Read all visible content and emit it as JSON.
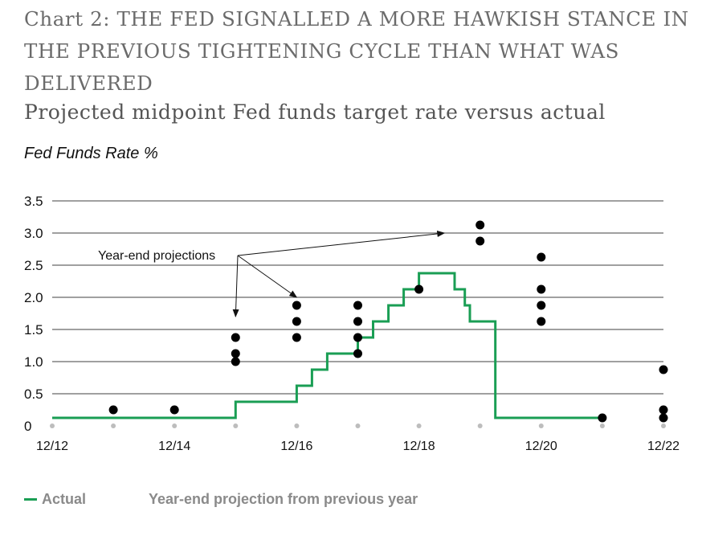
{
  "title": "Chart 2: THE FED SIGNALLED A MORE HAWKISH STANCE IN THE PREVIOUS TIGHTENING CYCLE THAN WHAT WAS DELIVERED",
  "subtitle": "Projected midpoint Fed funds target rate versus actual",
  "chart_data": {
    "type": "line",
    "title": "Chart 2: THE FED SIGNALLED A MORE HAWKISH STANCE IN THE PREVIOUS TIGHTENING CYCLE THAN WHAT WAS DELIVERED",
    "subtitle": "Projected midpoint Fed funds target rate versus actual",
    "ylabel": "Fed Funds Rate %",
    "xlabel": "",
    "ylim": [
      0,
      3.5
    ],
    "xlim": [
      "2012-12",
      "2022-12"
    ],
    "y_ticks": [
      "0",
      "0.5",
      "1.0",
      "1.5",
      "2.0",
      "2.5",
      "3.0",
      "3.5"
    ],
    "x_ticks": [
      "12/12",
      "12/14",
      "12/16",
      "12/18",
      "12/20",
      "12/22"
    ],
    "grid": "horizontal",
    "colors": {
      "actual": "#1a9e54",
      "projection": "#000000",
      "grid": "#000000",
      "year_marker": "#bdbdbd"
    },
    "series": [
      {
        "name": "Actual",
        "style": "step",
        "points": [
          [
            "2012-12",
            0.125
          ],
          [
            "2015-12",
            0.125
          ],
          [
            "2015-12",
            0.375
          ],
          [
            "2016-12",
            0.375
          ],
          [
            "2016-12",
            0.625
          ],
          [
            "2017-03",
            0.625
          ],
          [
            "2017-03",
            0.875
          ],
          [
            "2017-06",
            0.875
          ],
          [
            "2017-06",
            1.125
          ],
          [
            "2017-12",
            1.125
          ],
          [
            "2017-12",
            1.375
          ],
          [
            "2018-03",
            1.375
          ],
          [
            "2018-03",
            1.625
          ],
          [
            "2018-06",
            1.625
          ],
          [
            "2018-06",
            1.875
          ],
          [
            "2018-09",
            1.875
          ],
          [
            "2018-09",
            2.125
          ],
          [
            "2018-12",
            2.125
          ],
          [
            "2018-12",
            2.375
          ],
          [
            "2019-07",
            2.375
          ],
          [
            "2019-07",
            2.125
          ],
          [
            "2019-09",
            2.125
          ],
          [
            "2019-09",
            1.875
          ],
          [
            "2019-10",
            1.875
          ],
          [
            "2019-10",
            1.625
          ],
          [
            "2020-03",
            1.625
          ],
          [
            "2020-03",
            0.125
          ],
          [
            "2021-12",
            0.125
          ]
        ]
      },
      {
        "name": "Year-end projection from previous year",
        "style": "dots",
        "points": [
          [
            "2013-12",
            0.25
          ],
          [
            "2014-12",
            0.25
          ],
          [
            "2015-12",
            1.375
          ],
          [
            "2015-12",
            1.125
          ],
          [
            "2015-12",
            1.0
          ],
          [
            "2016-12",
            1.875
          ],
          [
            "2016-12",
            1.625
          ],
          [
            "2016-12",
            1.375
          ],
          [
            "2017-12",
            1.875
          ],
          [
            "2017-12",
            1.625
          ],
          [
            "2017-12",
            1.375
          ],
          [
            "2017-12",
            1.125
          ],
          [
            "2018-12",
            2.125
          ],
          [
            "2019-12",
            3.125
          ],
          [
            "2019-12",
            2.875
          ],
          [
            "2020-12",
            2.625
          ],
          [
            "2020-12",
            2.125
          ],
          [
            "2020-12",
            1.875
          ],
          [
            "2020-12",
            1.625
          ],
          [
            "2021-12",
            0.125
          ],
          [
            "2022-12",
            0.875
          ],
          [
            "2022-12",
            0.25
          ],
          [
            "2022-12",
            0.125
          ]
        ]
      }
    ],
    "annotations": [
      {
        "text": "Year-end projections",
        "arrow_targets": [
          [
            "2015-12",
            1.7
          ],
          [
            "2016-12",
            2.0
          ],
          [
            "2019-05",
            3.0
          ]
        ]
      }
    ],
    "legend": {
      "position": "bottom-left",
      "entries": [
        {
          "label": "Actual",
          "symbol": "line"
        },
        {
          "label": "Year-end projection from previous year",
          "symbol": "none"
        }
      ]
    }
  }
}
